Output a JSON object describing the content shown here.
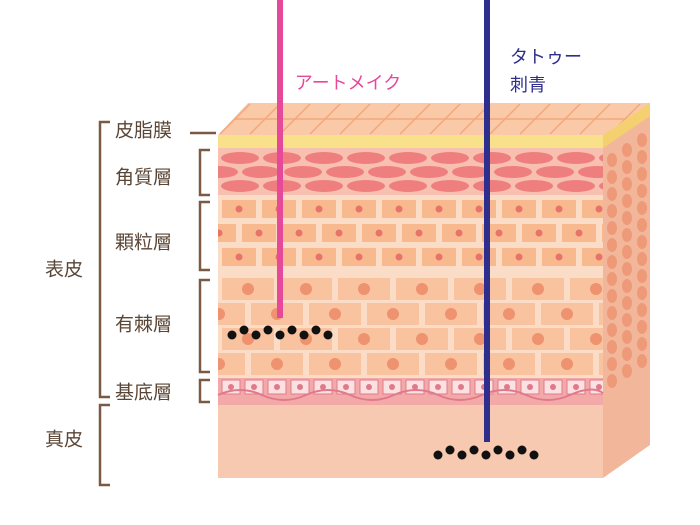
{
  "needles": {
    "art_makeup": "アートメイク",
    "tattoo": [
      "タトゥー",
      "刺青"
    ]
  },
  "layers": {
    "sebum": "皮脂膜",
    "corneum": "角質層",
    "granular": "顆粒層",
    "spinous": "有棘層",
    "basal": "基底層"
  },
  "groups": {
    "epidermis": "表皮",
    "dermis": "真皮"
  }
}
